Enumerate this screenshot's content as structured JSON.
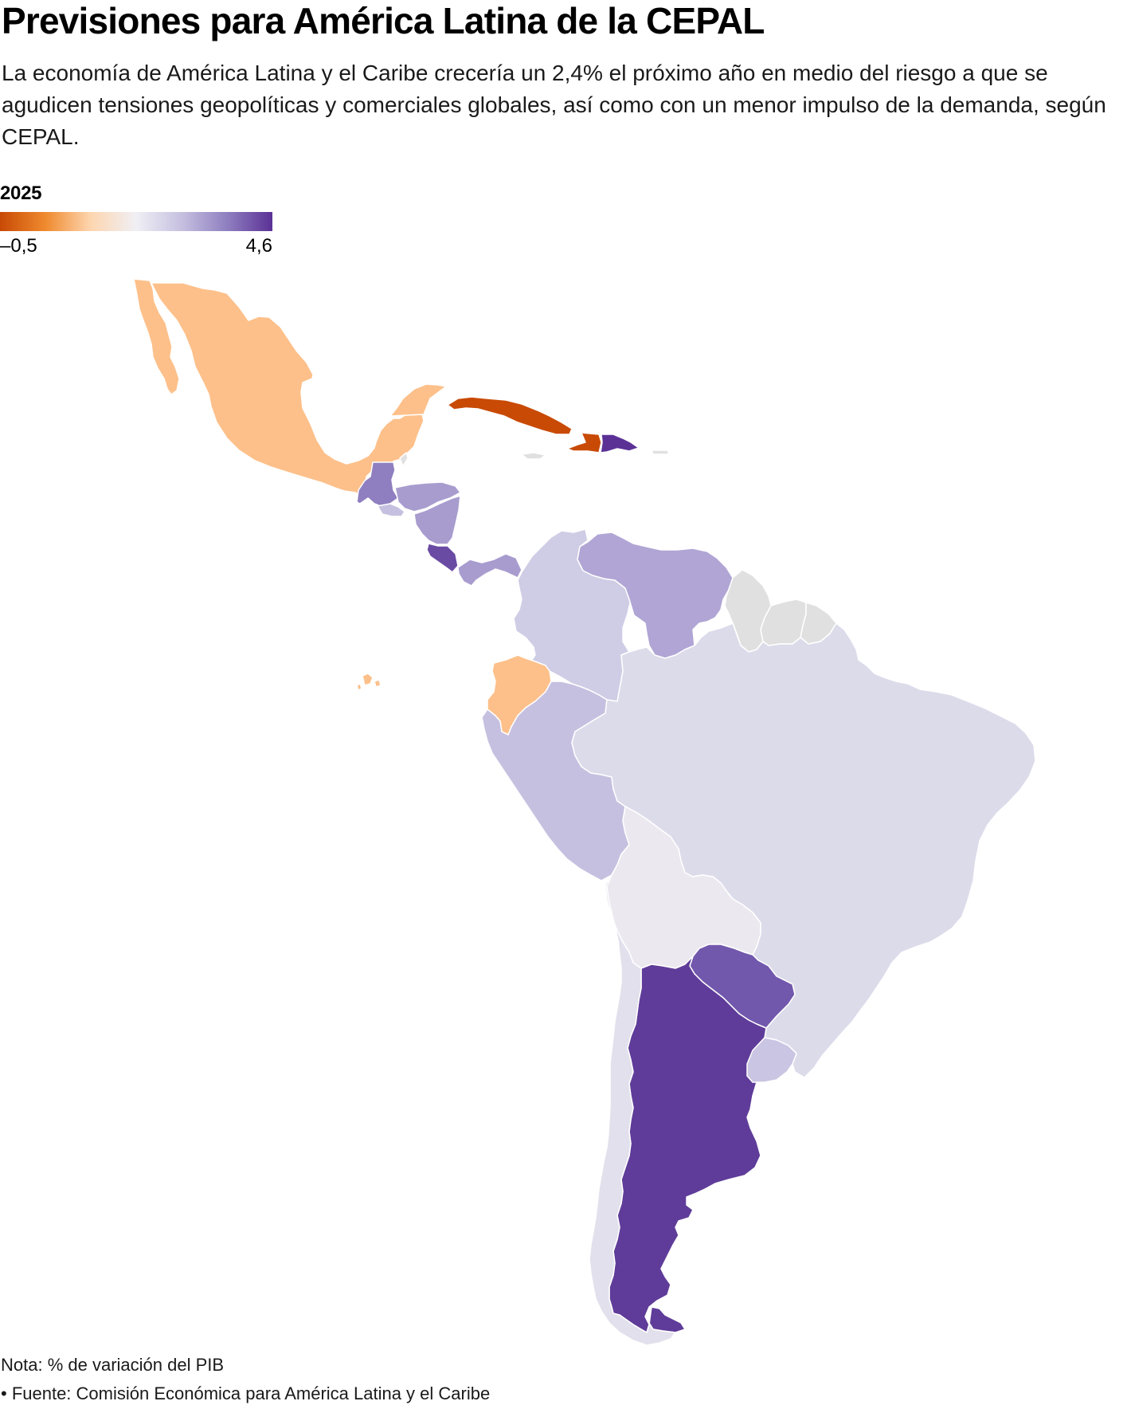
{
  "title": "Previsiones para América Latina de la CEPAL",
  "subtitle": "La economía de América Latina y el Caribe crecería un 2,4% el próximo año en medio del riesgo a que se agudicen tensiones geopolíticas y comerciales globales, así como con un menor impulso de la demanda, según CEPAL.",
  "legend": {
    "title": "2025",
    "min_label": "–0,5",
    "max_label": "4,6",
    "min": -0.5,
    "max": 4.6,
    "gradient": [
      "#c84a05",
      "#ef8a2e",
      "#fdd6b0",
      "#f0eff5",
      "#c6c0e0",
      "#8f7fc0",
      "#5b3196"
    ]
  },
  "colors": {
    "no_data": "#e0e0e0",
    "border": "#ffffff"
  },
  "countries": {
    "mexico": "#fdc08a",
    "cuba": "#c84a05",
    "haiti": "#c84a05",
    "dominican_republic": "#5b3196",
    "jamaica": "#e0e0e0",
    "puerto_rico": "#e0e0e0",
    "belize": "#e0e0e0",
    "guatemala": "#8f7fc0",
    "el_salvador": "#c6c0e0",
    "honduras": "#a89ccf",
    "nicaragua": "#a89ccf",
    "costa_rica": "#6a4ba3",
    "panama": "#a89ccf",
    "colombia": "#cfcce5",
    "venezuela": "#b0a5d4",
    "guyana": "#e0e0e0",
    "suriname": "#e0e0e0",
    "french_guiana": "#e0e0e0",
    "ecuador": "#fdc08a",
    "peru": "#c6c0e0",
    "brazil": "#dcdbea",
    "bolivia": "#ece8ef",
    "chile": "#e2e0ec",
    "argentina": "#5f3c99",
    "paraguay": "#7258ac",
    "uruguay": "#cac5e2"
  },
  "footer": {
    "note": "Nota: % de variación del PIB",
    "source": "• Fuente: Comisión Económica para América Latina y el Caribe"
  }
}
